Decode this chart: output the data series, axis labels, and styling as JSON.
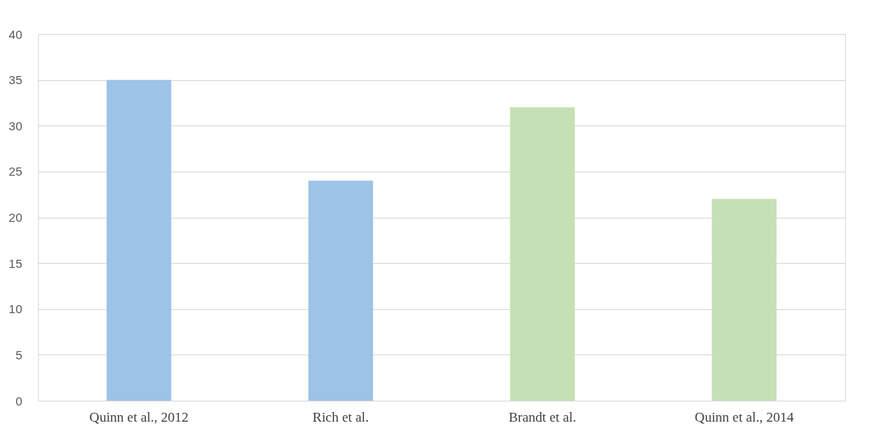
{
  "chart_data": {
    "type": "bar",
    "categories": [
      "Quinn et al., 2012",
      "Rich et al.",
      "Brandt et al.",
      "Quinn et al., 2014"
    ],
    "values": [
      35,
      24,
      32,
      22
    ],
    "colors": [
      "#9dc3e6",
      "#9dc3e6",
      "#c5e0b4",
      "#c5e0b4"
    ],
    "ylim": [
      0,
      40
    ],
    "yticks": [
      0,
      5,
      10,
      15,
      20,
      25,
      30,
      35,
      40
    ],
    "grid": "y",
    "legend": false
  }
}
